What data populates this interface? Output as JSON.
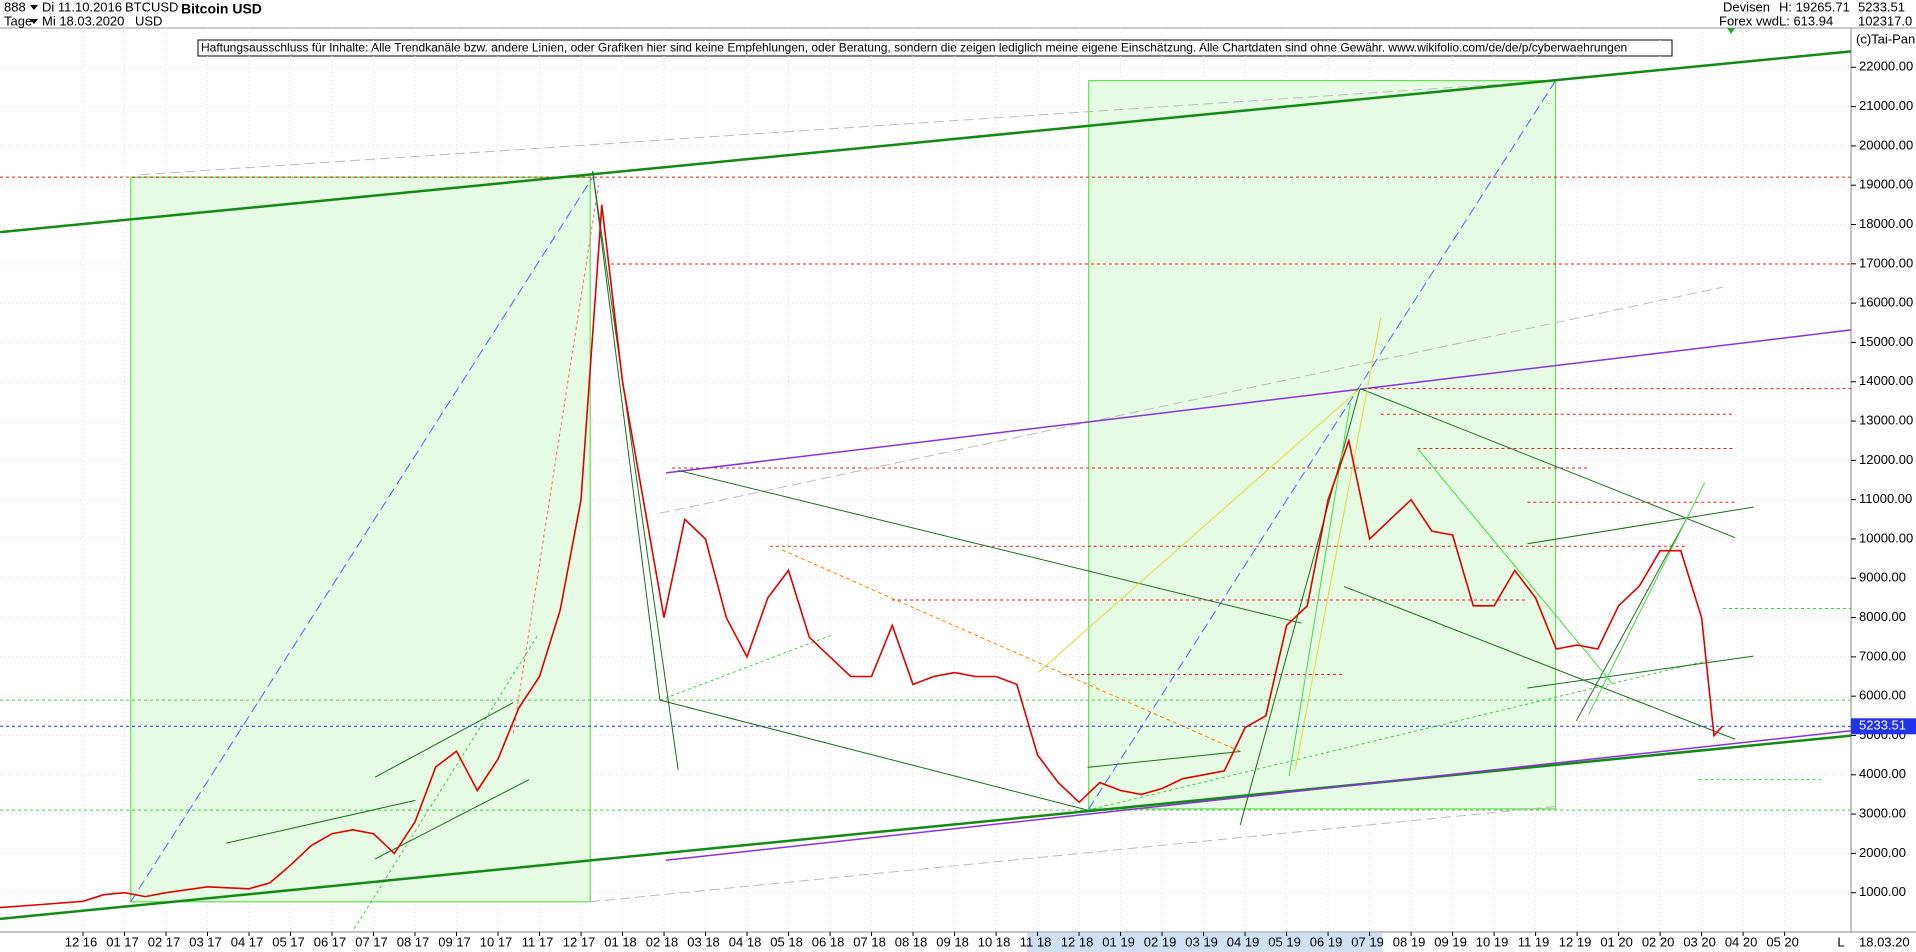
{
  "chart_data": {
    "type": "line",
    "title": "Bitcoin USD",
    "header": {
      "id": "888",
      "period": "Tage",
      "start": "Di 11.10.2016",
      "end": "Mi 18.03.2020",
      "symbol": "BTCUSD",
      "currency": "USD",
      "market": "Devisen",
      "source": "Forex vwd",
      "high": "H: 19265.71",
      "low": "L: 613.94",
      "last": 5233.51,
      "volume": "102317.0",
      "copyright": "(c)Tai-Pan",
      "axis_mode": "L",
      "axis_date": "18.03.20"
    },
    "disclaimer": "Haftungsausschluss für Inhalte: Alle Trendkanäle bzw. andere Linien, oder Grafiken hier sind keine Empfehlungen, oder Beratung, sondern die zeigen lediglich meine eigene Einschätzung. Alle Chartdaten sind ohne Gewähr.  www.wikifolio.com/de/de/p/cyberwaehrungen",
    "color": "#e00000",
    "x": [
      -2,
      -1,
      0,
      0.5,
      1,
      1.5,
      2,
      3,
      4,
      4.5,
      5,
      5.5,
      6,
      6.5,
      7,
      7.5,
      8,
      8.5,
      9,
      9.5,
      10,
      10.5,
      11,
      11.5,
      12,
      12.5,
      13,
      13.5,
      14,
      14.5,
      15,
      15.5,
      16,
      16.5,
      17,
      17.5,
      18,
      18.5,
      19,
      19.5,
      20,
      20.5,
      21,
      21.5,
      22,
      22.5,
      23,
      23.5,
      24,
      24.5,
      25,
      25.5,
      26,
      26.5,
      27,
      27.5,
      28,
      28.5,
      29,
      29.5,
      30,
      30.5,
      31,
      31.5,
      32,
      32.5,
      33,
      33.5,
      34,
      34.5,
      35,
      35.5,
      36,
      36.5,
      37,
      37.5,
      38,
      38.5,
      39,
      39.3,
      39.5
    ],
    "values": [
      620,
      700,
      780,
      950,
      1000,
      900,
      1000,
      1150,
      1100,
      1250,
      1700,
      2200,
      2500,
      2600,
      2500,
      2000,
      2800,
      4200,
      4600,
      3600,
      4400,
      5700,
      6500,
      8200,
      11000,
      18500,
      14000,
      11000,
      8000,
      10500,
      10000,
      8000,
      7000,
      8500,
      9200,
      7500,
      7000,
      6500,
      6500,
      7800,
      6300,
      6500,
      6600,
      6500,
      6500,
      6300,
      4500,
      3800,
      3300,
      3800,
      3600,
      3500,
      3650,
      3900,
      4000,
      4100,
      5200,
      5500,
      7800,
      8300,
      11000,
      12500,
      10000,
      10500,
      11000,
      10200,
      10100,
      8300,
      8300,
      9200,
      8500,
      7200,
      7300,
      7200,
      8300,
      8800,
      9700,
      9700,
      8000,
      5000,
      5233.51
    ],
    "xlim": [
      -2,
      42.6
    ],
    "xticks": [
      {
        "value": 0,
        "label": "12 16"
      },
      {
        "value": 1,
        "label": "01 17"
      },
      {
        "value": 2,
        "label": "02 17"
      },
      {
        "value": 3,
        "label": "03 17"
      },
      {
        "value": 4,
        "label": "04 17"
      },
      {
        "value": 5,
        "label": "05 17"
      },
      {
        "value": 6,
        "label": "06 17"
      },
      {
        "value": 7,
        "label": "07 17"
      },
      {
        "value": 8,
        "label": "08 17"
      },
      {
        "value": 9,
        "label": "09 17"
      },
      {
        "value": 10,
        "label": "10 17"
      },
      {
        "value": 11,
        "label": "11 17"
      },
      {
        "value": 12,
        "label": "12 17"
      },
      {
        "value": 13,
        "label": "01 18"
      },
      {
        "value": 14,
        "label": "02 18"
      },
      {
        "value": 15,
        "label": "03 18"
      },
      {
        "value": 16,
        "label": "04 18"
      },
      {
        "value": 17,
        "label": "05 18"
      },
      {
        "value": 18,
        "label": "06 18"
      },
      {
        "value": 19,
        "label": "07 18"
      },
      {
        "value": 20,
        "label": "08 18"
      },
      {
        "value": 21,
        "label": "09 18"
      },
      {
        "value": 22,
        "label": "10 18"
      },
      {
        "value": 23,
        "label": "11 18"
      },
      {
        "value": 24,
        "label": "12 18"
      },
      {
        "value": 25,
        "label": "01 19"
      },
      {
        "value": 26,
        "label": "02 19"
      },
      {
        "value": 27,
        "label": "03 19"
      },
      {
        "value": 28,
        "label": "04 19"
      },
      {
        "value": 29,
        "label": "05 19"
      },
      {
        "value": 30,
        "label": "06 19"
      },
      {
        "value": 31,
        "label": "07 19"
      },
      {
        "value": 32,
        "label": "08 19"
      },
      {
        "value": 33,
        "label": "09 19"
      },
      {
        "value": 34,
        "label": "10 19"
      },
      {
        "value": 35,
        "label": "11 19"
      },
      {
        "value": 36,
        "label": "12 19"
      },
      {
        "value": 37,
        "label": "01 20"
      },
      {
        "value": 38,
        "label": "02 20"
      },
      {
        "value": 39,
        "label": "03 20"
      },
      {
        "value": 40,
        "label": "04 20"
      },
      {
        "value": 41,
        "label": "05 20"
      }
    ],
    "ylim": [
      0,
      23000
    ],
    "yticks": [
      {
        "value": 1000,
        "label": "1000.00"
      },
      {
        "value": 2000,
        "label": "2000.00"
      },
      {
        "value": 3000,
        "label": "3000.00"
      },
      {
        "value": 4000,
        "label": "4000.00"
      },
      {
        "value": 5000,
        "label": "5000.00"
      },
      {
        "value": 6000,
        "label": "6000.00"
      },
      {
        "value": 7000,
        "label": "7000.00"
      },
      {
        "value": 8000,
        "label": "8000.00"
      },
      {
        "value": 9000,
        "label": "9000.00"
      },
      {
        "value": 10000,
        "label": "10000.00"
      },
      {
        "value": 11000,
        "label": "11000.00"
      },
      {
        "value": 12000,
        "label": "12000.00"
      },
      {
        "value": 13000,
        "label": "13000.00"
      },
      {
        "value": 14000,
        "label": "14000.00"
      },
      {
        "value": 15000,
        "label": "15000.00"
      },
      {
        "value": 16000,
        "label": "16000.00"
      },
      {
        "value": 17000,
        "label": "17000.00"
      },
      {
        "value": 18000,
        "label": "18000.00"
      },
      {
        "value": 19000,
        "label": "19000.00"
      },
      {
        "value": 20000,
        "label": "20000.00"
      },
      {
        "value": 21000,
        "label": "21000.00"
      },
      {
        "value": 22000,
        "label": "22000.00"
      }
    ],
    "grid": true
  }
}
